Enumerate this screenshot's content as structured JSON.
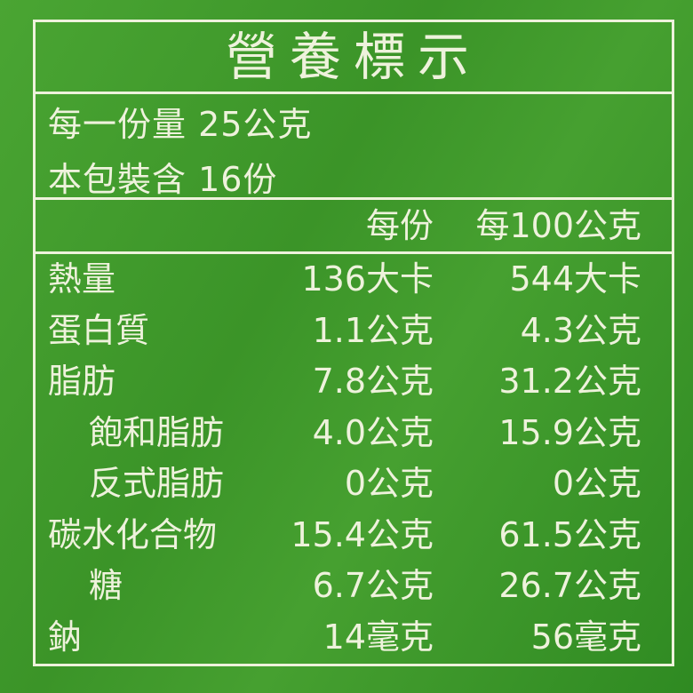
{
  "title": "營養標示",
  "serving_size": "每一份量 25公克",
  "servings_per_package": "本包裝含 16份",
  "header": {
    "per_serving": "每份",
    "per_100g": "每100公克"
  },
  "rows": [
    {
      "label": "熱量",
      "per_serving": "136大卡",
      "per_100g": "544大卡",
      "indent": false
    },
    {
      "label": "蛋白質",
      "per_serving": "1.1公克",
      "per_100g": "4.3公克",
      "indent": false
    },
    {
      "label": "脂肪",
      "per_serving": "7.8公克",
      "per_100g": "31.2公克",
      "indent": false
    },
    {
      "label": "飽和脂肪",
      "per_serving": "4.0公克",
      "per_100g": "15.9公克",
      "indent": true
    },
    {
      "label": "反式脂肪",
      "per_serving": "0公克",
      "per_100g": "0公克",
      "indent": true
    },
    {
      "label": "碳水化合物",
      "per_serving": "15.4公克",
      "per_100g": "61.5公克",
      "indent": false
    },
    {
      "label": "糖",
      "per_serving": "6.7公克",
      "per_100g": "26.7公克",
      "indent": true
    },
    {
      "label": "鈉",
      "per_serving": "14毫克",
      "per_100g": "56毫克",
      "indent": false
    }
  ],
  "colors": {
    "background": "#3f9a2b",
    "text": "#eef2dc"
  }
}
